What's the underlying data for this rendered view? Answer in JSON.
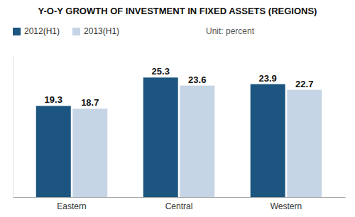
{
  "chart_data": {
    "type": "bar",
    "title": "Y-O-Y GROWTH OF INVESTMENT IN FIXED ASSETS (REGIONS)",
    "categories": [
      "Eastern",
      "Central",
      "Western"
    ],
    "series": [
      {
        "name": "2012(H1)",
        "color": "#1b5580",
        "values": [
          19.3,
          25.3,
          23.9
        ]
      },
      {
        "name": "2013(H1)",
        "color": "#c5d5e5",
        "values": [
          18.7,
          23.6,
          22.7
        ]
      }
    ],
    "annotations": [
      "Unit: percent"
    ],
    "ylim": [
      0,
      30
    ],
    "grid": false,
    "legend": "upper left",
    "data_labels": true,
    "tick_labels": "x"
  }
}
